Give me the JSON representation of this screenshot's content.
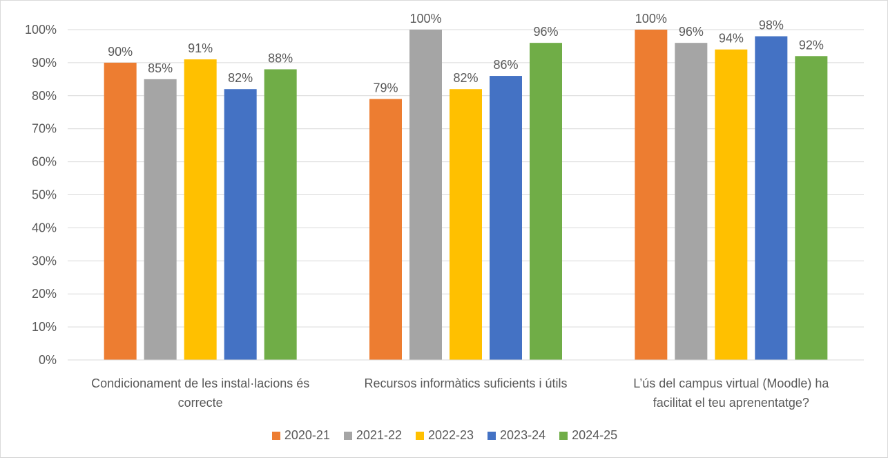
{
  "chart_data": {
    "type": "bar",
    "title": "",
    "xlabel": "",
    "ylabel": "",
    "ylim": [
      0,
      100
    ],
    "y_ticks": [
      "0%",
      "10%",
      "20%",
      "30%",
      "40%",
      "50%",
      "60%",
      "70%",
      "80%",
      "90%",
      "100%"
    ],
    "grid": true,
    "legend_position": "bottom",
    "categories": [
      [
        "Condicionament de les instal·lacions és",
        "correcte"
      ],
      [
        "Recursos informàtics suficients i útils"
      ],
      [
        "L’ús del campus virtual (Moodle) ha",
        "facilitat el teu aprenentatge?"
      ]
    ],
    "series": [
      {
        "name": "2020-21",
        "color": "#ED7D31",
        "values": [
          90,
          79,
          100
        ],
        "labels": [
          "90%",
          "79%",
          "100%"
        ]
      },
      {
        "name": "2021-22",
        "color": "#A5A5A5",
        "values": [
          85,
          100,
          96
        ],
        "labels": [
          "85%",
          "100%",
          "96%"
        ]
      },
      {
        "name": "2022-23",
        "color": "#FFC000",
        "values": [
          91,
          82,
          94
        ],
        "labels": [
          "91%",
          "82%",
          "94%"
        ]
      },
      {
        "name": "2023-24",
        "color": "#4472C4",
        "values": [
          82,
          86,
          98
        ],
        "labels": [
          "82%",
          "86%",
          "98%"
        ]
      },
      {
        "name": "2024-25",
        "color": "#70AD47",
        "values": [
          88,
          96,
          92
        ],
        "labels": [
          "88%",
          "96%",
          "92%"
        ]
      }
    ]
  }
}
